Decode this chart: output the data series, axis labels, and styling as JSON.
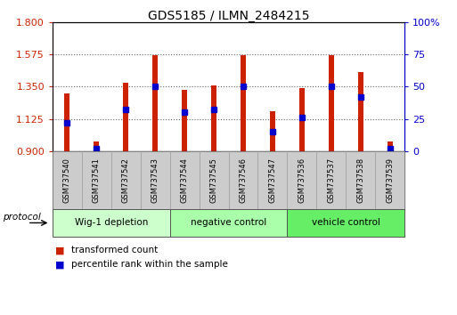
{
  "title": "GDS5185 / ILMN_2484215",
  "samples": [
    "GSM737540",
    "GSM737541",
    "GSM737542",
    "GSM737543",
    "GSM737544",
    "GSM737545",
    "GSM737546",
    "GSM737547",
    "GSM737536",
    "GSM737537",
    "GSM737538",
    "GSM737539"
  ],
  "transformed_counts": [
    1.3,
    0.97,
    1.38,
    1.57,
    1.33,
    1.36,
    1.57,
    1.18,
    1.34,
    1.57,
    1.45,
    0.97
  ],
  "percentile_ranks": [
    22,
    2,
    32,
    50,
    30,
    32,
    50,
    15,
    26,
    50,
    42,
    2
  ],
  "groups": [
    {
      "label": "Wig-1 depletion",
      "indices": [
        0,
        1,
        2,
        3
      ],
      "color": "#ccffcc"
    },
    {
      "label": "negative control",
      "indices": [
        4,
        5,
        6,
        7
      ],
      "color": "#aaffaa"
    },
    {
      "label": "vehicle control",
      "indices": [
        8,
        9,
        10,
        11
      ],
      "color": "#66ee66"
    }
  ],
  "ylim_left": [
    0.9,
    1.8
  ],
  "ylim_right": [
    0,
    100
  ],
  "yticks_left": [
    0.9,
    1.125,
    1.35,
    1.575,
    1.8
  ],
  "yticks_right": [
    0,
    25,
    50,
    75,
    100
  ],
  "bar_color": "#cc2200",
  "percentile_color": "#0000cc",
  "background_color": "#ffffff",
  "grid_color": "#666666",
  "tick_area_bg": "#cccccc",
  "protocol_label": "protocol",
  "legend1": "transformed count",
  "legend2": "percentile rank within the sample"
}
